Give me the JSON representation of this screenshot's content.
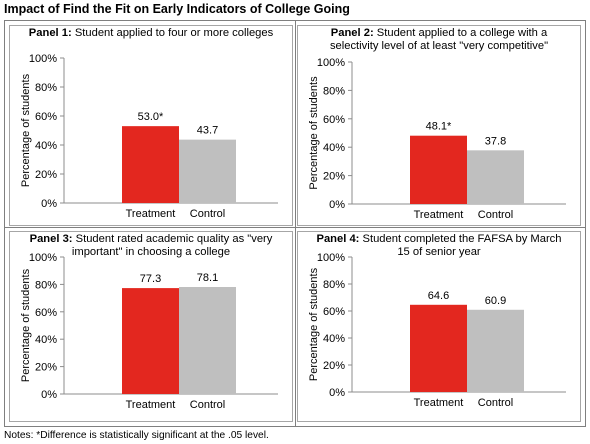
{
  "title": "Impact of Find the Fit on Early Indicators of College Going",
  "notes": "Notes: *Difference is statistically significant at the .05 level.",
  "colors": {
    "treatment": "#e3271f",
    "control": "#bfbfbf"
  },
  "chart_data": [
    {
      "type": "bar",
      "panel_label": "Panel 1:",
      "title_lines": [
        "Student applied to four or more colleges"
      ],
      "categories": [
        "Treatment",
        "Control"
      ],
      "values": [
        53.0,
        43.7
      ],
      "data_labels": [
        "53.0*",
        "43.7"
      ],
      "ylabel": "Percentage of students",
      "ylim": [
        0,
        100
      ],
      "yticks": [
        "0%",
        "20%",
        "40%",
        "60%",
        "80%",
        "100%"
      ],
      "grid": false
    },
    {
      "type": "bar",
      "panel_label": "Panel 2:",
      "title_lines": [
        "Student applied to a college with a",
        "selectivity level of at least \"very competitive\""
      ],
      "categories": [
        "Treatment",
        "Control"
      ],
      "values": [
        48.1,
        37.8
      ],
      "data_labels": [
        "48.1*",
        "37.8"
      ],
      "ylabel": "Percentage of students",
      "ylim": [
        0,
        100
      ],
      "yticks": [
        "0%",
        "20%",
        "40%",
        "60%",
        "80%",
        "100%"
      ],
      "grid": false
    },
    {
      "type": "bar",
      "panel_label": "Panel 3:",
      "title_lines": [
        "Student rated academic quality as \"very",
        "important\" in choosing a college"
      ],
      "categories": [
        "Treatment",
        "Control"
      ],
      "values": [
        77.3,
        78.1
      ],
      "data_labels": [
        "77.3",
        "78.1"
      ],
      "ylabel": "Percentage of students",
      "ylim": [
        0,
        100
      ],
      "yticks": [
        "0%",
        "20%",
        "40%",
        "60%",
        "80%",
        "100%"
      ],
      "grid": false
    },
    {
      "type": "bar",
      "panel_label": "Panel 4:",
      "title_lines": [
        "Student completed the FAFSA by March",
        "15 of senior year"
      ],
      "categories": [
        "Treatment",
        "Control"
      ],
      "values": [
        64.6,
        60.9
      ],
      "data_labels": [
        "64.6",
        "60.9"
      ],
      "ylabel": "Percentage of students",
      "ylim": [
        0,
        100
      ],
      "yticks": [
        "0%",
        "20%",
        "40%",
        "60%",
        "80%",
        "100%"
      ],
      "grid": false
    }
  ]
}
